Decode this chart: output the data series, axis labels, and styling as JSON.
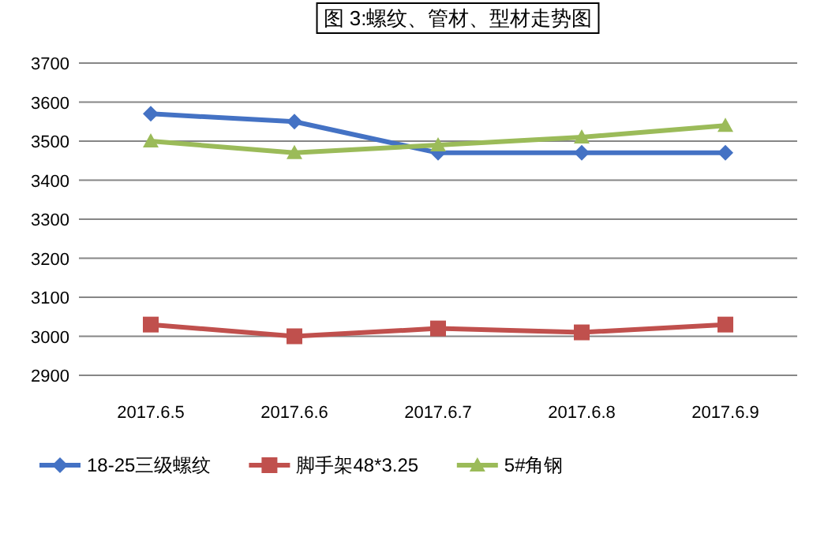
{
  "chart_data": {
    "type": "line",
    "title": "图 3:螺纹、管材、型材走势图",
    "categories": [
      "2017.6.5",
      "2017.6.6",
      "2017.6.7",
      "2017.6.8",
      "2017.6.9"
    ],
    "series": [
      {
        "name": "18-25三级螺纹",
        "color": "#4472c4",
        "marker": "diamond",
        "values": [
          3570,
          3550,
          3470,
          3470,
          3470
        ]
      },
      {
        "name": "脚手架48*3.25",
        "color": "#c0504d",
        "marker": "square",
        "values": [
          3030,
          3000,
          3020,
          3010,
          3030
        ]
      },
      {
        "name": "5#角钢",
        "color": "#9bbb59",
        "marker": "triangle",
        "values": [
          3500,
          3470,
          3490,
          3510,
          3540
        ]
      }
    ],
    "ylim": [
      2900,
      3700
    ],
    "yticks": [
      2900,
      3000,
      3100,
      3200,
      3300,
      3400,
      3500,
      3600,
      3700
    ],
    "grid": "y",
    "legend": "bottom",
    "line_style": "solid"
  }
}
